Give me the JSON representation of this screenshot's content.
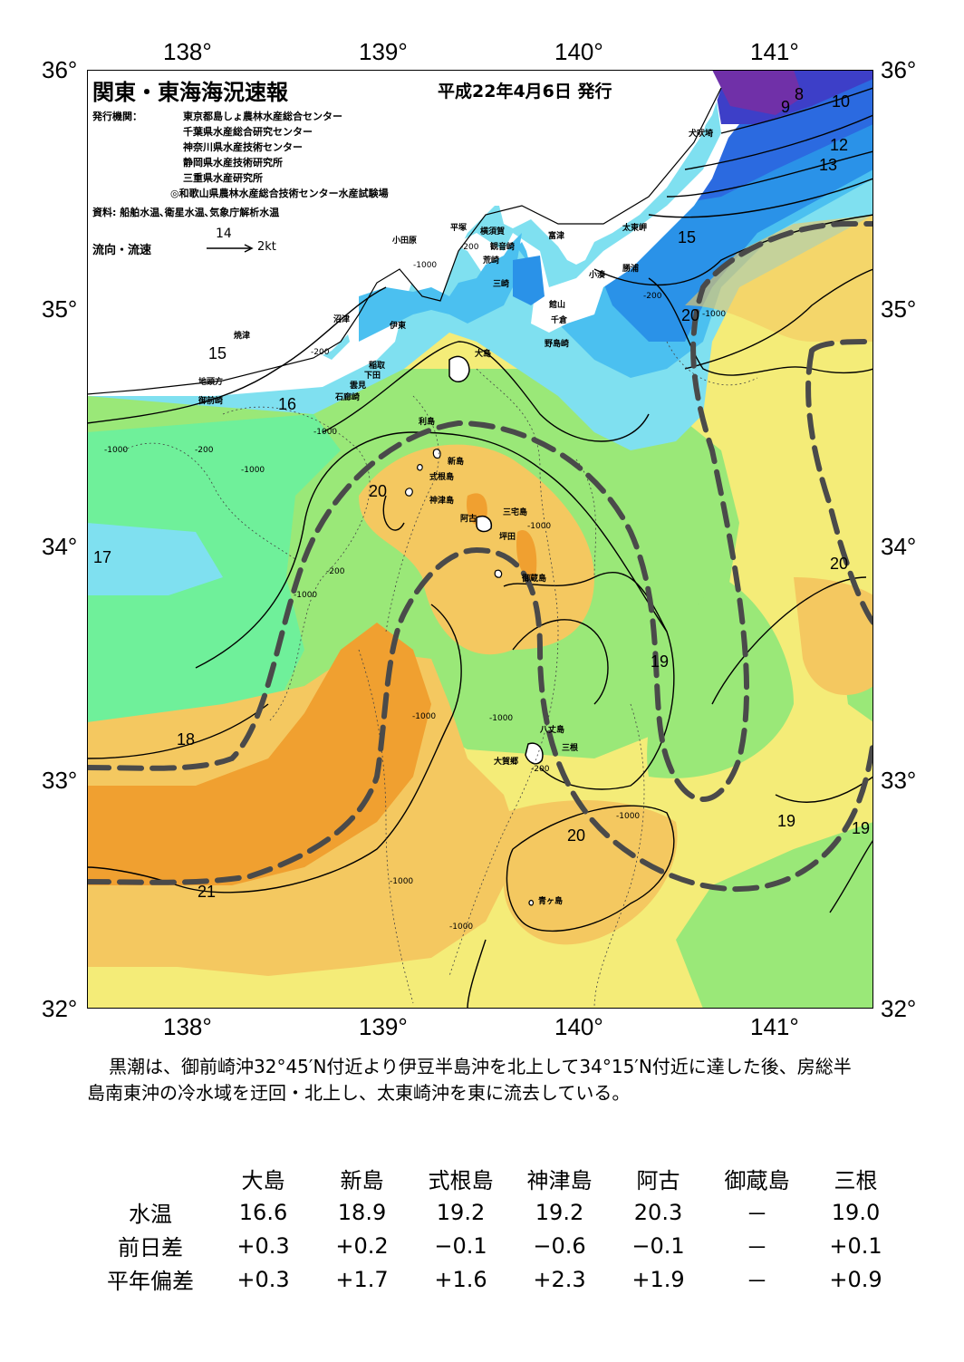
{
  "header": {
    "title": "関東・東海海況速報",
    "issue_date": "平成22年4月6日 発行",
    "publisher_label": "発行機関：",
    "publishers": [
      "東京都島しょ農林水産総合センター",
      "千葉県水産総合研究センター",
      "神奈川県水産技術センター",
      "静岡県水産技術研究所",
      "三重県水産研究所",
      "◎和歌山県農林水産総合技術センター水産試験場"
    ],
    "source": "資料: 船舶水温､衛星水温､気象庁解析水温",
    "flow_legend": {
      "label": "流向・流速",
      "speed_value": "14",
      "unit": "2kt"
    }
  },
  "axes": {
    "longitude_ticks": [
      "138°",
      "139°",
      "140°",
      "141°"
    ],
    "latitude_ticks": [
      "36°",
      "35°",
      "34°",
      "33°",
      "32°"
    ]
  },
  "isotherm_labels": [
    "8",
    "9",
    "10",
    "12",
    "13",
    "15",
    "15",
    "16",
    "17",
    "18",
    "19",
    "19",
    "19",
    "20",
    "20",
    "20",
    "20",
    "21"
  ],
  "depth_labels": [
    "-200",
    "-1000"
  ],
  "place_names": {
    "inubosaki": "犬吠埼",
    "taitozaki": "太東岬",
    "katsuura": "勝浦",
    "kominato": "小湊",
    "futtsu": "富津",
    "tateyama": "館山",
    "chikura": "千倉",
    "nojimazaki": "野島崎",
    "odawara": "小田原",
    "hiratsuka": "平塚",
    "yokosuka": "横須賀",
    "kannonzaki": "観音崎",
    "arasaki": "荒崎",
    "misaki": "三崎",
    "numazu": "沼津",
    "ito": "伊東",
    "yaizu": "焼津",
    "inatori": "稲取",
    "shimoda": "下田",
    "kumomi": "雲見",
    "irozaki": "石廊崎",
    "jitogata": "地頭方",
    "omaezaki": "御前崎",
    "oshima": "大島",
    "toshima": "利島",
    "niijima": "新島",
    "shikinejima": "式根島",
    "kozushima": "神津島",
    "ako": "阿古",
    "miyakejima": "三宅島",
    "tsubota": "坪田",
    "mikurajima": "御蔵島",
    "hachijojima": "八丈島",
    "mitsune": "三根",
    "okago": "大賀郷",
    "aogashima": "青ヶ島"
  },
  "description": "黒潮は、御前崎沖32°45′N付近より伊豆半島沖を北上して34°15′N付近に達した後、房総半島南東沖の冷水域を迂回・北上し、太東崎沖を東に流去している。",
  "observation_table": {
    "columns": [
      "大島",
      "新島",
      "式根島",
      "神津島",
      "阿古",
      "御蔵島",
      "三根"
    ],
    "rows": [
      {
        "label": "水温",
        "values": [
          "16.6",
          "18.9",
          "19.2",
          "19.2",
          "20.3",
          "－",
          "19.0"
        ]
      },
      {
        "label": "前日差",
        "values": [
          "+0.3",
          "+0.2",
          "−0.1",
          "−0.6",
          "−0.1",
          "－",
          "+0.1"
        ]
      },
      {
        "label": "平年偏差",
        "values": [
          "+0.3",
          "+1.7",
          "+1.6",
          "+2.3",
          "+1.9",
          "－",
          "+0.9"
        ]
      }
    ]
  },
  "colors": {
    "t8_10": "#7030a8",
    "t10_12": "#3d3fc8",
    "t12_13": "#2b6ae0",
    "t13_15": "#2a92e8",
    "t15_16": "#4bc0f0",
    "t16_17": "#7fe0f0",
    "t17_18": "#6ff09a",
    "t18_19": "#9ae878",
    "t19_20": "#f4ec78",
    "t20_21": "#f4c860",
    "t21plus": "#f0a030",
    "land": "#ffffff",
    "kuroshio_axis": "#4a4a4a"
  }
}
